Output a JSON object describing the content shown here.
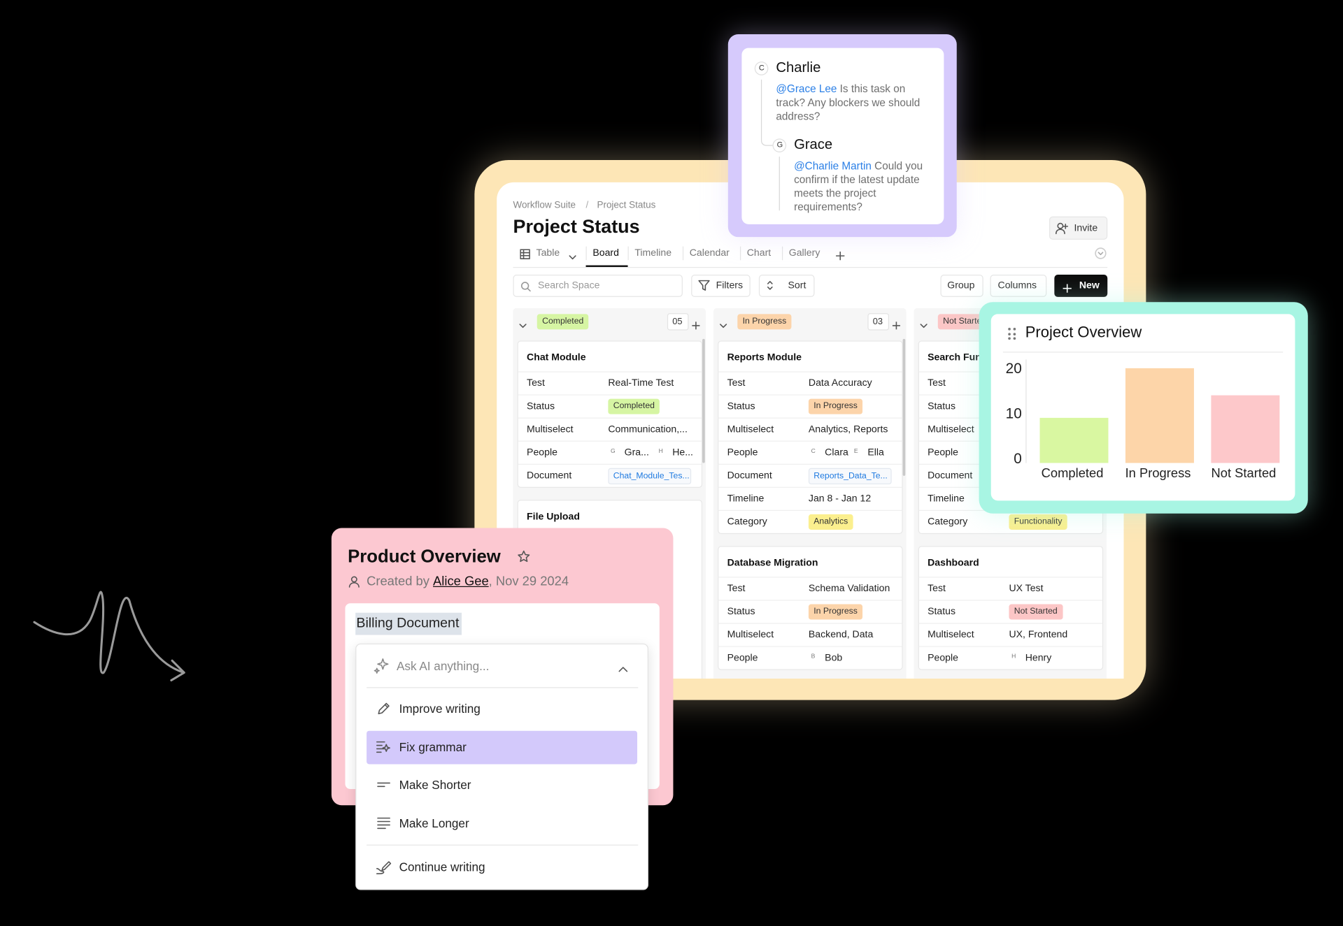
{
  "board": {
    "breadcrumb": [
      "Workflow Suite",
      "Project Status"
    ],
    "separator": "/",
    "title": "Project Status",
    "invite": "Invite",
    "tabs": [
      "Table",
      "Board",
      "Timeline",
      "Calendar",
      "Chart",
      "Gallery"
    ],
    "search": "Search Space",
    "actions": [
      "Filters",
      "Sort"
    ],
    "view_actions": [
      "Group",
      "Columns"
    ],
    "new": "New",
    "columns": [
      {
        "status": "Completed",
        "color": "#d6f5a3",
        "count": "05",
        "cards": [
          {
            "title": "Chat Module",
            "fields": [
              {
                "label": "Test",
                "value": "Real-Time Test"
              },
              {
                "label": "Status",
                "badge": "Completed",
                "color": "#d6f5a3"
              },
              {
                "label": "Multiselect",
                "value": "Communication,..."
              },
              {
                "label": "People",
                "people": [
                  {
                    "initial": "G",
                    "name": "Gra..."
                  },
                  {
                    "initial": "H",
                    "name": "He..."
                  }
                ]
              },
              {
                "label": "Document",
                "link": "Chat_Module_Tes..."
              }
            ]
          },
          {
            "title": "File Upload"
          }
        ]
      },
      {
        "status": "In Progress",
        "color": "#fcd4aa",
        "count": "03",
        "cards": [
          {
            "title": "Reports Module",
            "fields": [
              {
                "label": "Test",
                "value": "Data Accuracy"
              },
              {
                "label": "Status",
                "badge": "In Progress",
                "color": "#fcd4aa"
              },
              {
                "label": "Multiselect",
                "value": "Analytics, Reports"
              },
              {
                "label": "People",
                "people": [
                  {
                    "initial": "C",
                    "name": "Clara"
                  },
                  {
                    "initial": "E",
                    "name": "Ella"
                  }
                ]
              },
              {
                "label": "Document",
                "link": "Reports_Data_Te..."
              },
              {
                "label": "Timeline",
                "value": "Jan 8 - Jan 12"
              },
              {
                "label": "Category",
                "badge": "Analytics",
                "color": "#fbef8e"
              }
            ]
          },
          {
            "title": "Database Migration",
            "fields": [
              {
                "label": "Test",
                "value": "Schema Validation"
              },
              {
                "label": "Status",
                "badge": "In Progress",
                "color": "#fcd4aa"
              },
              {
                "label": "Multiselect",
                "value": "Backend, Data"
              },
              {
                "label": "People",
                "people": [
                  {
                    "initial": "B",
                    "name": "Bob"
                  }
                ]
              }
            ]
          }
        ]
      },
      {
        "status": "Not Started",
        "color": "#fcc6c6",
        "cards": [
          {
            "title": "Search Functionality",
            "fields": [
              {
                "label": "Test"
              },
              {
                "label": "Status"
              },
              {
                "label": "Multiselect"
              },
              {
                "label": "People"
              },
              {
                "label": "Document"
              },
              {
                "label": "Timeline"
              },
              {
                "label": "Category",
                "badge": "Functionality",
                "color": "#fbef8e"
              }
            ]
          },
          {
            "title": "Dashboard",
            "fields": [
              {
                "label": "Test",
                "value": "UX Test"
              },
              {
                "label": "Status",
                "badge": "Not Started",
                "color": "#fcc6c6"
              },
              {
                "label": "Multiselect",
                "value": "UX, Frontend"
              },
              {
                "label": "People",
                "people": [
                  {
                    "initial": "H",
                    "name": "Henry"
                  }
                ]
              }
            ]
          }
        ]
      }
    ]
  },
  "comments": [
    {
      "avatar": "C",
      "name": "Charlie",
      "mention": "@Grace Lee",
      "text": " Is this task on track? Any blockers we should address?"
    },
    {
      "avatar": "G",
      "name": "Grace",
      "mention": "@Charlie Martin",
      "text": " Could you confirm if the latest update meets the project requirements?"
    }
  ],
  "chart_data": {
    "type": "bar",
    "title": "Project Overview",
    "categories": [
      "Completed",
      "In Progress",
      "Not Started"
    ],
    "values": [
      10,
      21,
      15
    ],
    "colors": [
      "#d9f7a1",
      "#fdd5a9",
      "#fdc8ca"
    ],
    "ylim": [
      0,
      22
    ],
    "yticks": [
      0,
      10,
      20
    ],
    "grid": false
  },
  "product": {
    "title": "Product Overview",
    "created_by": "Created by",
    "author": "Alice Gee",
    "date": ", Nov 29 2024",
    "document": "Billing Document",
    "ai_prompt": "Ask AI anything...",
    "ai_actions": [
      "Improve writing",
      "Fix grammar",
      "Make Shorter",
      "Make Longer"
    ],
    "ai_continue": "Continue writing",
    "selected": 1
  }
}
